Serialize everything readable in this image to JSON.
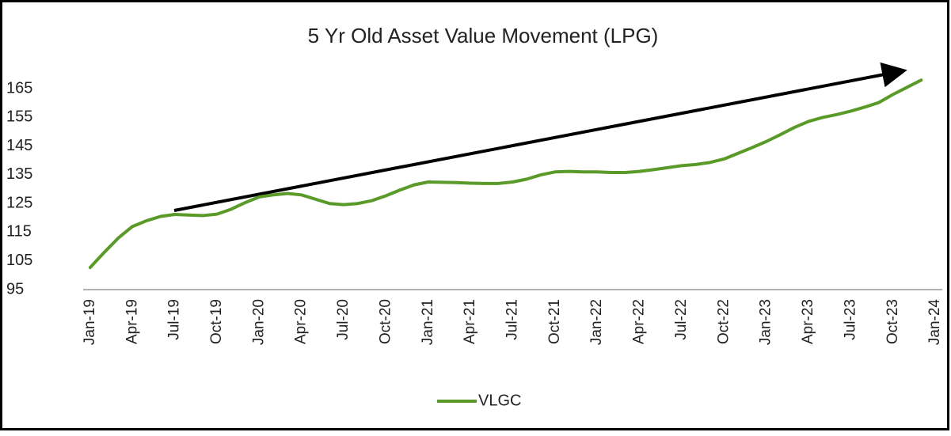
{
  "chart_data": {
    "type": "line",
    "title": "5 Yr Old Asset Value Movement (LPG)",
    "categories": [
      "Jan-19",
      null,
      null,
      "Apr-19",
      null,
      null,
      "Jul-19",
      null,
      null,
      "Oct-19",
      null,
      null,
      "Jan-20",
      null,
      null,
      "Apr-20",
      null,
      null,
      "Jul-20",
      null,
      null,
      "Oct-20",
      null,
      null,
      "Jan-21",
      null,
      null,
      "Apr-21",
      null,
      null,
      "Jul-21",
      null,
      null,
      "Oct-21",
      null,
      null,
      "Jan-22",
      null,
      null,
      "Apr-22",
      null,
      null,
      "Jul-22",
      null,
      null,
      "Oct-22",
      null,
      null,
      "Jan-23",
      null,
      null,
      "Apr-23",
      null,
      null,
      "Jul-23",
      null,
      null,
      "Oct-23",
      null,
      null,
      "Jan-24"
    ],
    "series": [
      {
        "name": "VLGC",
        "color": "#5a9a28",
        "values": [
          102.7,
          108,
          113,
          117,
          119,
          120.5,
          121.2,
          121,
          120.8,
          121.3,
          123,
          125.3,
          127.3,
          128,
          128.5,
          128,
          126.5,
          125,
          124.6,
          125,
          126,
          127.7,
          129.7,
          131.5,
          132.5,
          132.4,
          132.3,
          132.1,
          132,
          132,
          132.5,
          133.5,
          135,
          136,
          136.2,
          136,
          136,
          135.8,
          135.8,
          136.2,
          136.8,
          137.5,
          138.2,
          138.6,
          139.3,
          140.5,
          142.5,
          144.5,
          146.6,
          149,
          151.5,
          153.6,
          155,
          156,
          157.2,
          158.6,
          160.2,
          163,
          165.5,
          168,
          null
        ]
      }
    ],
    "ylim": [
      95,
      170
    ],
    "yticks": [
      95,
      105,
      115,
      125,
      135,
      145,
      155,
      165
    ],
    "grid": false,
    "legend": "bottom"
  }
}
